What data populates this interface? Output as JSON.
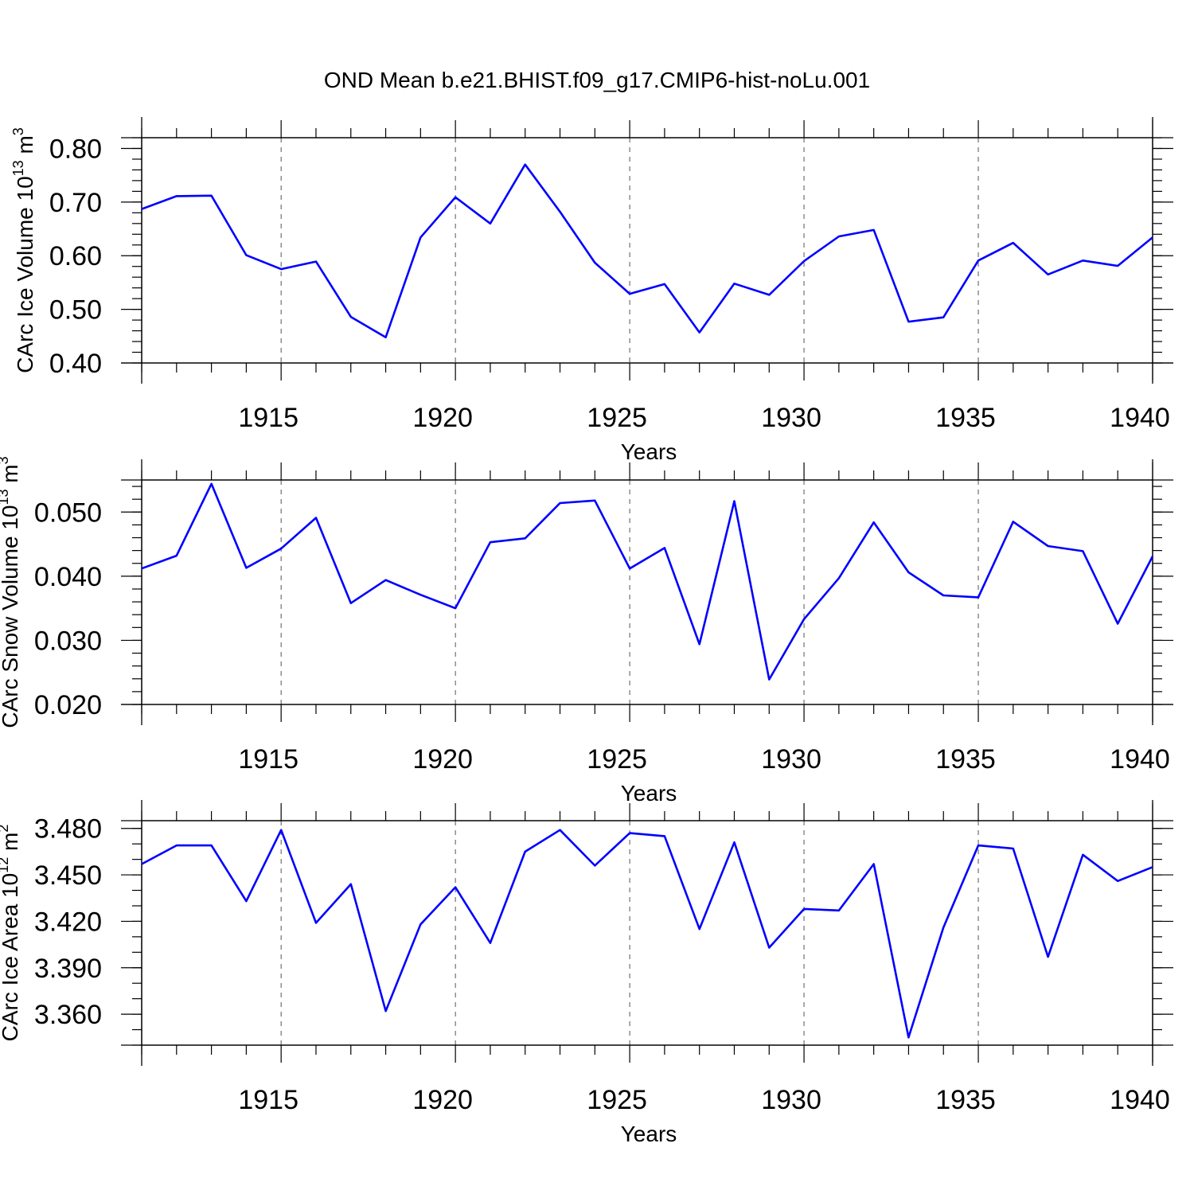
{
  "title": "OND Mean b.e21.BHIST.f09_g17.CMIP6-hist-noLu.001",
  "colors": {
    "series": "#0000ff",
    "axes": "#000000",
    "grid": "#555555"
  },
  "chart_data": [
    {
      "type": "line",
      "xlabel": "Years",
      "ylabel_base": "CArc Ice Volume 10",
      "ylabel_exp": "13",
      "ylabel_unit": " m",
      "ylabel_unit_exp": "3",
      "x": [
        1911,
        1912,
        1913,
        1914,
        1915,
        1916,
        1917,
        1918,
        1919,
        1920,
        1921,
        1922,
        1923,
        1924,
        1925,
        1926,
        1927,
        1928,
        1929,
        1930,
        1931,
        1932,
        1933,
        1934,
        1935,
        1936,
        1937,
        1938,
        1939,
        1940
      ],
      "values": [
        0.687,
        0.711,
        0.712,
        0.601,
        0.575,
        0.589,
        0.486,
        0.448,
        0.634,
        0.709,
        0.66,
        0.77,
        0.682,
        0.587,
        0.529,
        0.547,
        0.457,
        0.548,
        0.527,
        0.59,
        0.636,
        0.648,
        0.477,
        0.485,
        0.591,
        0.624,
        0.565,
        0.591,
        0.581,
        0.634
      ],
      "xlim": [
        1911,
        1940
      ],
      "ylim": [
        0.4,
        0.82
      ],
      "xticks": [
        1915,
        1920,
        1925,
        1930,
        1935,
        1940
      ],
      "xtick_labels": [
        "1915",
        "1920",
        "1925",
        "1930",
        "1935",
        "1940"
      ],
      "yticks": [
        0.4,
        0.5,
        0.6,
        0.7,
        0.8
      ],
      "ytick_labels": [
        "0.40",
        "0.50",
        "0.60",
        "0.70",
        "0.80"
      ],
      "yminor_step": 0.02,
      "grid": "vertical dashed at major x ticks"
    },
    {
      "type": "line",
      "xlabel": "Years",
      "ylabel_base": "CArc Snow Volume 10",
      "ylabel_exp": "13",
      "ylabel_unit": " m",
      "ylabel_unit_exp": "3",
      "x": [
        1911,
        1912,
        1913,
        1914,
        1915,
        1916,
        1917,
        1918,
        1919,
        1920,
        1921,
        1922,
        1923,
        1924,
        1925,
        1926,
        1927,
        1928,
        1929,
        1930,
        1931,
        1932,
        1933,
        1934,
        1935,
        1936,
        1937,
        1938,
        1939,
        1940
      ],
      "values": [
        0.0412,
        0.0432,
        0.0544,
        0.0413,
        0.0443,
        0.0491,
        0.0358,
        0.0394,
        0.0371,
        0.035,
        0.0453,
        0.0459,
        0.0514,
        0.0518,
        0.0412,
        0.0444,
        0.0294,
        0.0517,
        0.0239,
        0.0333,
        0.0397,
        0.0484,
        0.0406,
        0.037,
        0.0367,
        0.0485,
        0.0447,
        0.0439,
        0.0326,
        0.0431
      ],
      "xlim": [
        1911,
        1940
      ],
      "ylim": [
        0.02,
        0.055
      ],
      "xticks": [
        1915,
        1920,
        1925,
        1930,
        1935,
        1940
      ],
      "xtick_labels": [
        "1915",
        "1920",
        "1925",
        "1930",
        "1935",
        "1940"
      ],
      "yticks": [
        0.02,
        0.03,
        0.04,
        0.05
      ],
      "ytick_labels": [
        "0.020",
        "0.030",
        "0.040",
        "0.050"
      ],
      "yminor_step": 0.002,
      "grid": "vertical dashed at major x ticks"
    },
    {
      "type": "line",
      "xlabel": "Years",
      "ylabel_base": "CArc Ice Area 10",
      "ylabel_exp": "12",
      "ylabel_unit": " m",
      "ylabel_unit_exp": "2",
      "x": [
        1911,
        1912,
        1913,
        1914,
        1915,
        1916,
        1917,
        1918,
        1919,
        1920,
        1921,
        1922,
        1923,
        1924,
        1925,
        1926,
        1927,
        1928,
        1929,
        1930,
        1931,
        1932,
        1933,
        1934,
        1935,
        1936,
        1937,
        1938,
        1939,
        1940
      ],
      "values": [
        3.457,
        3.469,
        3.469,
        3.433,
        3.479,
        3.419,
        3.444,
        3.362,
        3.418,
        3.442,
        3.406,
        3.465,
        3.479,
        3.456,
        3.477,
        3.475,
        3.415,
        3.471,
        3.403,
        3.428,
        3.427,
        3.457,
        3.345,
        3.416,
        3.469,
        3.467,
        3.397,
        3.463,
        3.446,
        3.455
      ],
      "xlim": [
        1911,
        1940
      ],
      "ylim": [
        3.34,
        3.485
      ],
      "xticks": [
        1915,
        1920,
        1925,
        1930,
        1935,
        1940
      ],
      "xtick_labels": [
        "1915",
        "1920",
        "1925",
        "1930",
        "1935",
        "1940"
      ],
      "yticks": [
        3.36,
        3.39,
        3.42,
        3.45,
        3.48
      ],
      "ytick_labels": [
        "3.360",
        "3.390",
        "3.420",
        "3.450",
        "3.480"
      ],
      "yminor_step": 0.01,
      "grid": "vertical dashed at major x ticks"
    }
  ]
}
